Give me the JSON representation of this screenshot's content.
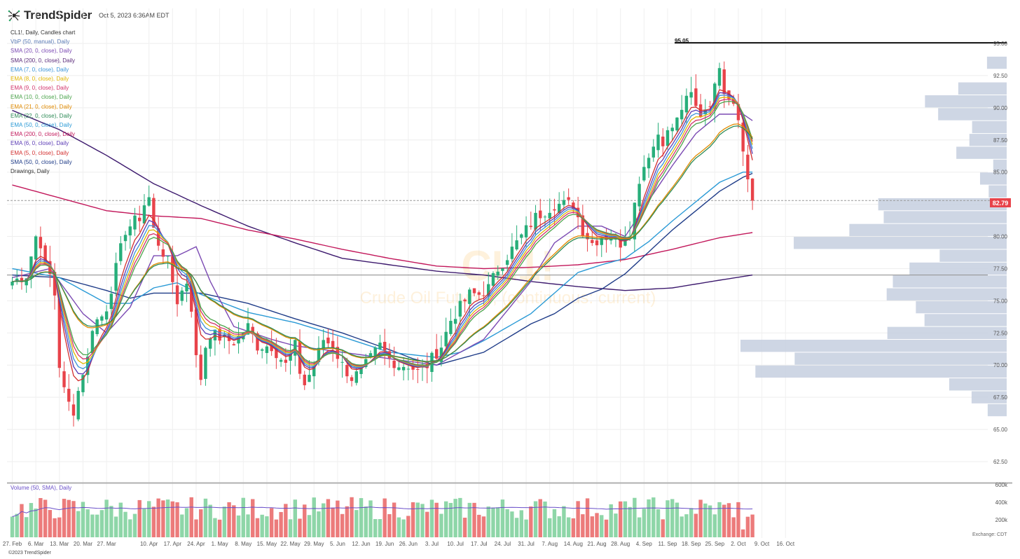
{
  "header": {
    "brand": "TrendSpider",
    "timestamp": "Oct 5, 2023 6:36AM EDT"
  },
  "legend": {
    "title": "CL1!, Daily, Candles chart",
    "items": [
      {
        "label": "VbP (50, manual), Daily",
        "color": "#5b7bb5"
      },
      {
        "label": "SMA (20, 0, close), Daily",
        "color": "#7b4ab3"
      },
      {
        "label": "SMA (200, 0, close), Daily",
        "color": "#5a2a7a"
      },
      {
        "label": "EMA (7, 0, close), Daily",
        "color": "#3b94d9"
      },
      {
        "label": "EMA (8, 0, close), Daily",
        "color": "#e0b400"
      },
      {
        "label": "EMA (9, 0, close), Daily",
        "color": "#d2336b"
      },
      {
        "label": "EMA (10, 0, close), Daily",
        "color": "#4aa34a"
      },
      {
        "label": "EMA (21, 0, close), Daily",
        "color": "#e08a00"
      },
      {
        "label": "EMA (22, 0, close), Daily",
        "color": "#2e8b57"
      },
      {
        "label": "EMA (50, 0, close), Daily",
        "color": "#2a9ad6"
      },
      {
        "label": "EMA (200, 0, close), Daily",
        "color": "#c2185b"
      },
      {
        "label": "EMA (6, 0, close), Daily",
        "color": "#5b3bb5"
      },
      {
        "label": "EMA (5, 0, close), Daily",
        "color": "#d32f2f"
      },
      {
        "label": "SMA (50, 0, close), Daily",
        "color": "#1f3c88"
      },
      {
        "label": "Drawings, Daily",
        "color": "#333333"
      }
    ]
  },
  "watermark": {
    "symbol": "CL1!",
    "name": "Crude Oil Futures, (continuous: current)"
  },
  "annotations": {
    "resistance_label": "95.05",
    "resistance_value": 95.05,
    "last_price_label": "82.79",
    "last_price": 82.79,
    "support_value": 77.0
  },
  "volume_panel": {
    "legend": "Volume (50, SMA), Daily",
    "axis_labels": [
      "600k",
      "400k",
      "200k"
    ],
    "axis_values": [
      600000,
      400000,
      200000
    ],
    "exchange_note": "Exchange: CDT"
  },
  "footer": {
    "copyright": "©2023 TrendSpider"
  },
  "colors": {
    "up": "#27ae7a",
    "down": "#e8434a",
    "vol_up": "#8ed6a8",
    "vol_down": "#ec7b7b",
    "vbp": "#c5cfdf",
    "price_tag": "#e8434a"
  },
  "chart_data": {
    "type": "line",
    "title": "CL1!, Daily, Candles chart",
    "ylim": [
      61.5,
      95.5
    ],
    "y_ticks": [
      62.5,
      65.0,
      67.5,
      70.0,
      72.5,
      75.0,
      77.5,
      80.0,
      82.5,
      85.0,
      87.5,
      90.0,
      92.5,
      95.0
    ],
    "y_tick_labels": [
      "62.50",
      "65.00",
      "67.50",
      "70.00",
      "72.50",
      "75.00",
      "77.50",
      "80.00",
      "82.50",
      "85.00",
      "87.50",
      "90.00",
      "92.50",
      "95.00"
    ],
    "x_tick_labels": [
      "27. Feb",
      "6. Mar",
      "13. Mar",
      "20. Mar",
      "27. Mar",
      "10. Apr",
      "17. Apr",
      "24. Apr",
      "1. May",
      "8. May",
      "15. May",
      "22. May",
      "29. May",
      "5. Jun",
      "12. Jun",
      "19. Jun",
      "26. Jun",
      "3. Jul",
      "10. Jul",
      "17. Jul",
      "24. Jul",
      "31. Jul",
      "7. Aug",
      "14. Aug",
      "21. Aug",
      "28. Aug",
      "4. Sep",
      "11. Sep",
      "18. Sep",
      "25. Sep",
      "2. Oct",
      "9. Oct",
      "16. Oct"
    ],
    "x_tick_days": [
      0,
      5,
      10,
      15,
      20,
      29,
      34,
      39,
      44,
      49,
      54,
      59,
      64,
      69,
      74,
      79,
      84,
      89,
      94,
      99,
      104,
      109,
      114,
      119,
      124,
      129,
      134,
      139,
      144,
      149,
      154,
      159,
      164
    ],
    "close_anchors": [
      [
        0,
        76.5
      ],
      [
        3,
        77.0
      ],
      [
        5,
        80.0
      ],
      [
        6,
        79.5
      ],
      [
        7,
        77.5
      ],
      [
        8,
        77.0
      ],
      [
        9,
        75.5
      ],
      [
        10,
        70.0
      ],
      [
        11,
        68.0
      ],
      [
        12,
        67.0
      ],
      [
        13,
        66.5
      ],
      [
        14,
        68.0
      ],
      [
        15,
        69.5
      ],
      [
        16,
        70.5
      ],
      [
        17,
        73.0
      ],
      [
        18,
        73.5
      ],
      [
        19,
        73.8
      ],
      [
        20,
        74.5
      ],
      [
        24,
        80.5
      ],
      [
        27,
        81.5
      ],
      [
        28,
        82.5
      ],
      [
        29,
        83.0
      ],
      [
        30,
        80.5
      ],
      [
        31,
        79.5
      ],
      [
        33,
        78.0
      ],
      [
        34,
        76.5
      ],
      [
        35,
        75.0
      ],
      [
        37,
        76.5
      ],
      [
        38,
        74.5
      ],
      [
        39,
        70.5
      ],
      [
        40,
        69.0
      ],
      [
        41,
        71.5
      ],
      [
        42,
        72.5
      ],
      [
        45,
        72.0
      ],
      [
        47,
        71.8
      ],
      [
        50,
        73.0
      ],
      [
        52,
        71.5
      ],
      [
        55,
        71.5
      ],
      [
        58,
        70.0
      ],
      [
        60,
        71.5
      ],
      [
        61,
        69.5
      ],
      [
        62,
        68.5
      ],
      [
        64,
        70.0
      ],
      [
        66,
        72.0
      ],
      [
        68,
        71.5
      ],
      [
        70,
        70.0
      ],
      [
        72,
        69.0
      ],
      [
        74,
        69.5
      ],
      [
        76,
        70.5
      ],
      [
        78,
        71.5
      ],
      [
        80,
        70.5
      ],
      [
        82,
        70.0
      ],
      [
        84,
        70.0
      ],
      [
        86,
        69.5
      ],
      [
        88,
        70.0
      ],
      [
        91,
        71.5
      ],
      [
        93,
        73.5
      ],
      [
        95,
        74.5
      ],
      [
        97,
        75.5
      ],
      [
        99,
        75.5
      ],
      [
        101,
        76.0
      ],
      [
        103,
        77.5
      ],
      [
        105,
        78.5
      ],
      [
        107,
        79.5
      ],
      [
        109,
        80.5
      ],
      [
        111,
        81.5
      ],
      [
        113,
        82.0
      ],
      [
        115,
        82.5
      ],
      [
        117,
        82.5
      ],
      [
        119,
        82.5
      ],
      [
        121,
        80.5
      ],
      [
        123,
        79.5
      ],
      [
        125,
        80.0
      ],
      [
        127,
        80.0
      ],
      [
        129,
        79.5
      ],
      [
        131,
        80.5
      ],
      [
        132,
        82.5
      ],
      [
        133,
        84.5
      ],
      [
        134,
        85.5
      ],
      [
        135,
        86.5
      ],
      [
        136,
        87.0
      ],
      [
        137,
        88.0
      ],
      [
        138,
        87.5
      ],
      [
        139,
        88.0
      ],
      [
        140,
        88.5
      ],
      [
        141,
        89.0
      ],
      [
        142,
        90.0
      ],
      [
        143,
        90.5
      ],
      [
        144,
        91.0
      ],
      [
        145,
        90.0
      ],
      [
        146,
        89.5
      ],
      [
        147,
        90.0
      ],
      [
        148,
        90.5
      ],
      [
        149,
        91.5
      ],
      [
        150,
        93.5
      ],
      [
        151,
        91.5
      ],
      [
        152,
        91.0
      ],
      [
        153,
        90.5
      ],
      [
        154,
        89.5
      ],
      [
        155,
        86.5
      ],
      [
        156,
        84.5
      ],
      [
        157,
        82.8
      ]
    ],
    "series": [
      {
        "name": "SMA (200, 0, close)",
        "kind": "sma200",
        "anchors": [
          [
            0,
            89.8
          ],
          [
            10,
            88.3
          ],
          [
            20,
            86.3
          ],
          [
            30,
            84.1
          ],
          [
            40,
            82.4
          ],
          [
            50,
            80.8
          ],
          [
            60,
            79.5
          ],
          [
            70,
            78.3
          ],
          [
            80,
            77.8
          ],
          [
            90,
            77.3
          ],
          [
            100,
            77.0
          ],
          [
            110,
            76.5
          ],
          [
            120,
            76.1
          ],
          [
            130,
            75.8
          ],
          [
            140,
            76.0
          ],
          [
            150,
            76.6
          ],
          [
            157,
            77.0
          ]
        ]
      },
      {
        "name": "EMA (200, 0, close)",
        "kind": "ema200",
        "anchors": [
          [
            0,
            84.0
          ],
          [
            10,
            83.0
          ],
          [
            20,
            82.0
          ],
          [
            30,
            81.6
          ],
          [
            40,
            81.4
          ],
          [
            50,
            80.5
          ],
          [
            60,
            79.8
          ],
          [
            70,
            79.0
          ],
          [
            80,
            78.3
          ],
          [
            90,
            77.7
          ],
          [
            100,
            77.5
          ],
          [
            110,
            77.6
          ],
          [
            120,
            77.8
          ],
          [
            130,
            78.2
          ],
          [
            140,
            79.0
          ],
          [
            150,
            79.9
          ],
          [
            157,
            80.3
          ]
        ]
      },
      {
        "name": "SMA (50, 0, close)",
        "kind": "sma50",
        "anchors": [
          [
            0,
            77.0
          ],
          [
            10,
            76.8
          ],
          [
            20,
            75.8
          ],
          [
            25,
            75.2
          ],
          [
            30,
            75.6
          ],
          [
            40,
            75.6
          ],
          [
            50,
            74.8
          ],
          [
            60,
            73.6
          ],
          [
            70,
            72.5
          ],
          [
            80,
            71.2
          ],
          [
            85,
            70.5
          ],
          [
            90,
            70.0
          ],
          [
            95,
            70.5
          ],
          [
            100,
            71.0
          ],
          [
            110,
            73.2
          ],
          [
            115,
            74.0
          ],
          [
            120,
            75.2
          ],
          [
            125,
            75.9
          ],
          [
            130,
            77.1
          ],
          [
            135,
            78.8
          ],
          [
            140,
            80.5
          ],
          [
            145,
            82.0
          ],
          [
            150,
            83.5
          ],
          [
            155,
            84.6
          ],
          [
            157,
            84.9
          ]
        ]
      },
      {
        "name": "EMA (50, 0, close)",
        "kind": "ema50",
        "anchors": [
          [
            0,
            77.5
          ],
          [
            10,
            76.8
          ],
          [
            20,
            74.8
          ],
          [
            25,
            74.8
          ],
          [
            30,
            76.0
          ],
          [
            35,
            76.4
          ],
          [
            40,
            75.5
          ],
          [
            50,
            74.1
          ],
          [
            60,
            73.3
          ],
          [
            70,
            72.2
          ],
          [
            80,
            71.0
          ],
          [
            90,
            70.6
          ],
          [
            95,
            71.0
          ],
          [
            100,
            71.9
          ],
          [
            110,
            74.0
          ],
          [
            120,
            77.2
          ],
          [
            125,
            77.8
          ],
          [
            130,
            78.3
          ],
          [
            135,
            79.6
          ],
          [
            140,
            81.2
          ],
          [
            145,
            82.7
          ],
          [
            150,
            84.2
          ],
          [
            155,
            85.0
          ],
          [
            157,
            85.0
          ]
        ]
      },
      {
        "name": "SMA (20, 0, close)",
        "kind": "sma20",
        "anchors": [
          [
            0,
            76.8
          ],
          [
            8,
            77.5
          ],
          [
            15,
            74.0
          ],
          [
            20,
            72.5
          ],
          [
            25,
            74.5
          ],
          [
            30,
            78.5
          ],
          [
            35,
            78.5
          ],
          [
            39,
            79.2
          ],
          [
            42,
            76.5
          ],
          [
            47,
            73.0
          ],
          [
            55,
            72.0
          ],
          [
            60,
            71.5
          ],
          [
            70,
            71.0
          ],
          [
            80,
            70.5
          ],
          [
            90,
            70.0
          ],
          [
            100,
            72.0
          ],
          [
            110,
            76.5
          ],
          [
            115,
            79.5
          ],
          [
            120,
            80.8
          ],
          [
            125,
            80.8
          ],
          [
            130,
            80.0
          ],
          [
            135,
            82.8
          ],
          [
            140,
            85.5
          ],
          [
            145,
            88.0
          ],
          [
            150,
            89.5
          ],
          [
            155,
            89.5
          ],
          [
            157,
            89.0
          ]
        ]
      }
    ]
  }
}
